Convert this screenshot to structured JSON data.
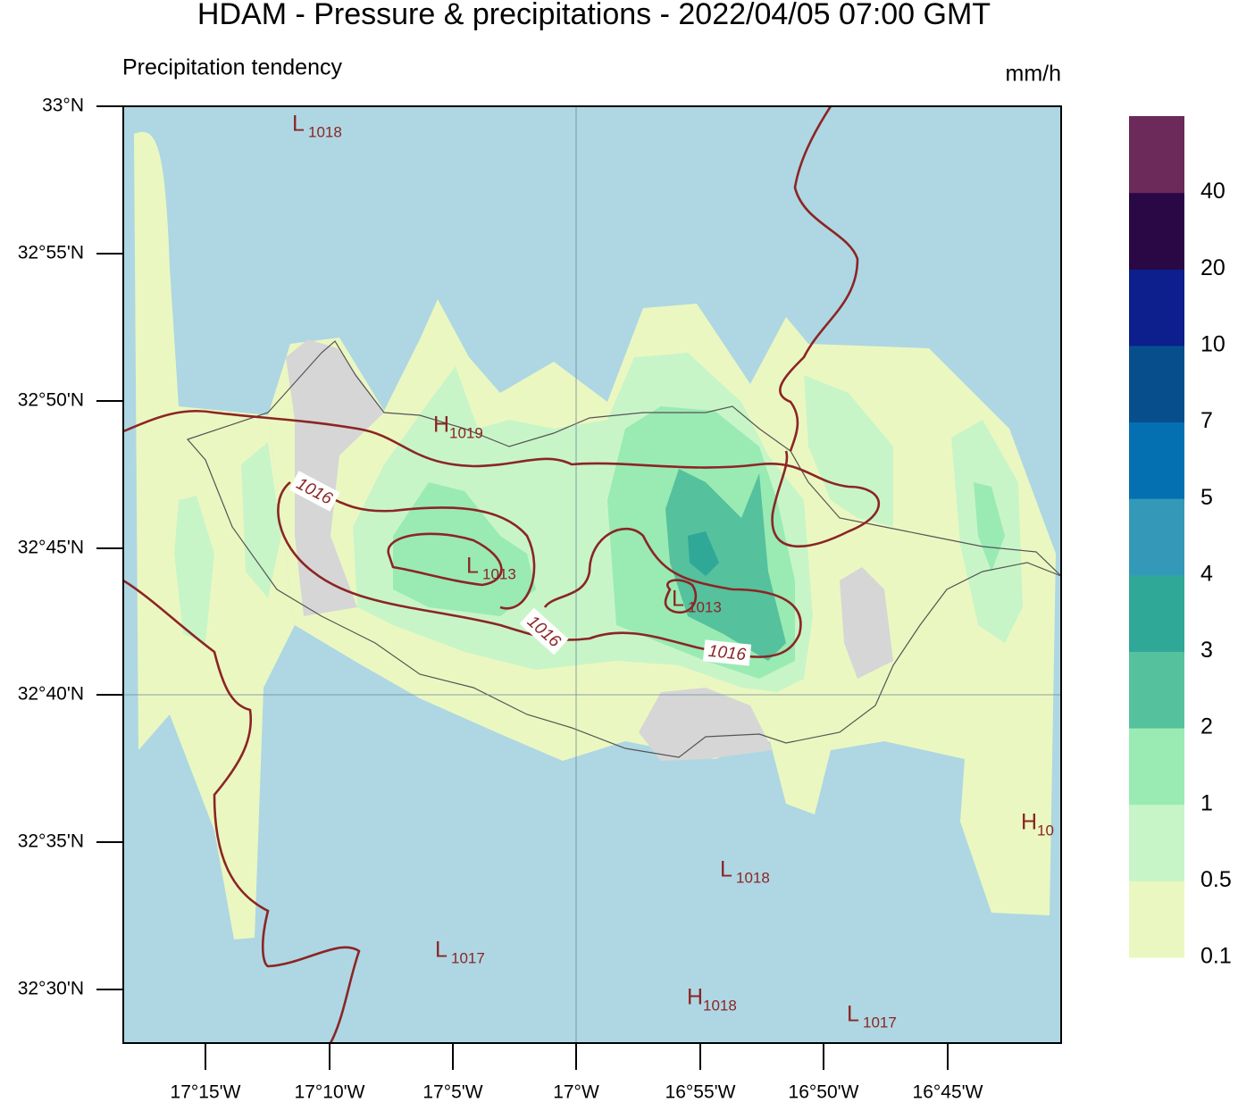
{
  "title": "HDAM - Pressure & precipitations  -  2022/04/05  07:00 GMT",
  "subtitle": "Precipitation tendency",
  "units": "mm/h",
  "lat_labels": [
    "33°N",
    "32°55'N",
    "32°50'N",
    "32°45'N",
    "32°40'N",
    "32°35'N",
    "32°30'N"
  ],
  "lon_labels": [
    "17°15'W",
    "17°10'W",
    "17°5'W",
    "17°W",
    "16°55'W",
    "16°50'W",
    "16°45'W"
  ],
  "colorbar": {
    "labels": [
      "0.1",
      "0.5",
      "1",
      "2",
      "3",
      "4",
      "5",
      "7",
      "10",
      "20",
      "40"
    ],
    "colors": [
      "#ebf7c1",
      "#c8f5c8",
      "#9aeab4",
      "#55c19d",
      "#2fa898",
      "#3499b8",
      "#0570b1",
      "#064f8c",
      "#0c1f8c",
      "#2a0845",
      "#6b2a5a"
    ]
  },
  "pressure_centers": [
    {
      "letter": "L",
      "value": "1018"
    },
    {
      "letter": "H",
      "value": "1019"
    },
    {
      "letter": "L",
      "value": "1013"
    },
    {
      "letter": "L",
      "value": "1013"
    },
    {
      "letter": "L",
      "value": "1018"
    },
    {
      "letter": "L",
      "value": "1017"
    },
    {
      "letter": "H",
      "value": "1018"
    },
    {
      "letter": "L",
      "value": "1017"
    },
    {
      "letter": "H",
      "value": "10"
    }
  ],
  "contour_labels": [
    "1016",
    "1016",
    "1016"
  ]
}
